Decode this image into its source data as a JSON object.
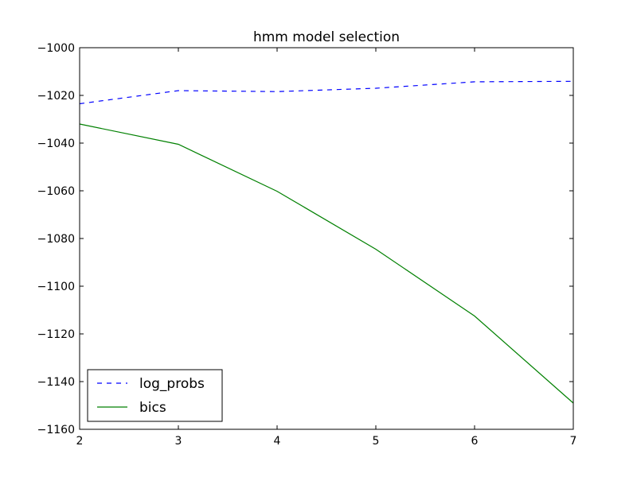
{
  "chart_data": {
    "type": "line",
    "title": "hmm model selection",
    "xlabel": "",
    "ylabel": "",
    "xlim": [
      2,
      7
    ],
    "ylim": [
      -1160,
      -1000
    ],
    "x_ticks": [
      "2",
      "3",
      "4",
      "5",
      "6",
      "7"
    ],
    "y_ticks": [
      "−1000",
      "−1020",
      "−1040",
      "−1060",
      "−1080",
      "−1100",
      "−1120",
      "−1140",
      "−1160"
    ],
    "grid": false,
    "legend_position": "lower-left",
    "x": [
      2,
      3,
      4,
      5,
      6,
      7
    ],
    "series": [
      {
        "name": "log_probs",
        "values": [
          -1023.5,
          -1018,
          -1018.4,
          -1017,
          -1014.3,
          -1014.1
        ],
        "color": "#0000ff",
        "style": "dashed"
      },
      {
        "name": "bics",
        "values": [
          -1032,
          -1040.5,
          -1060.2,
          -1084.5,
          -1112.5,
          -1149
        ],
        "color": "#008000",
        "style": "solid"
      }
    ]
  }
}
